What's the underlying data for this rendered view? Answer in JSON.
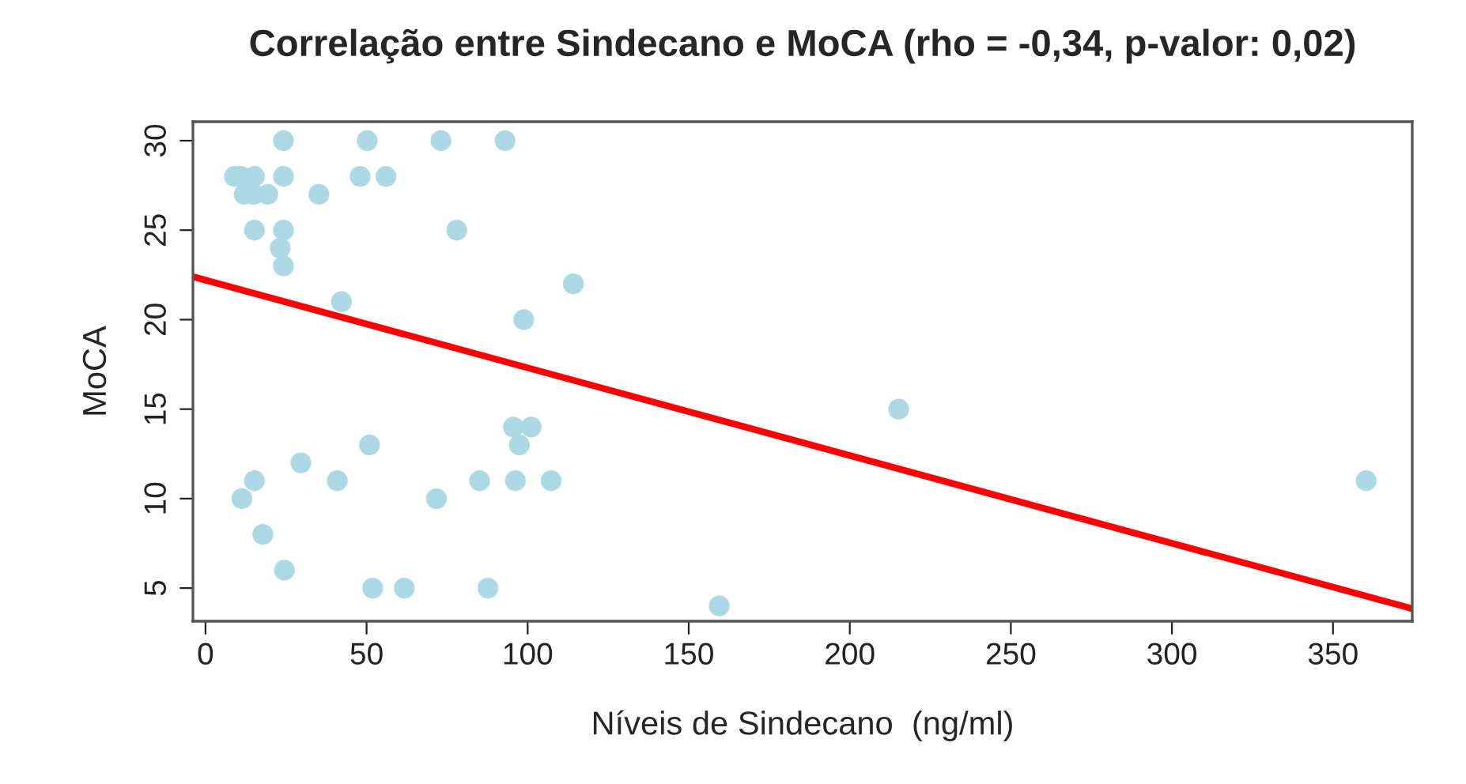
{
  "chart_data": {
    "type": "scatter",
    "title": "Correlação entre Sindecano e MoCA (rho = -0,34, p-valor: 0,02)",
    "xlabel": "Níveis de Sindecano  (ng/ml)",
    "ylabel": "MoCA",
    "series": [
      {
        "color": "#add8e6",
        "marker": "circle",
        "x": [
          24.2,
          50.2,
          73.1,
          93,
          9,
          11,
          15.2,
          24.2,
          48,
          56,
          12,
          15,
          19.3,
          35.2,
          15.2,
          24.2,
          78,
          23.2,
          24.2,
          114.2,
          42.2,
          98.8,
          215.2,
          95.6,
          101.1,
          50.9,
          97.4,
          29.6,
          15.2,
          40.9,
          85.1,
          96.2,
          107.3,
          360.3,
          11.3,
          71.7,
          17.8,
          24.5,
          51.9,
          61.7,
          87.7,
          159.5
        ],
        "values": [
          30,
          30,
          30,
          30,
          28,
          28,
          28,
          28,
          28,
          28,
          27,
          27,
          27,
          27,
          25,
          25,
          25,
          24,
          23,
          22,
          21,
          20,
          15,
          14,
          14,
          13,
          13,
          12,
          11,
          11,
          11,
          11,
          11,
          11,
          10,
          10,
          8,
          6,
          5,
          5,
          5,
          4
        ]
      },
      {
        "type": "line",
        "color": "#ff0000",
        "x": [
          -3.9,
          374.6
        ],
        "values": [
          22.4,
          3.85
        ]
      }
    ],
    "xlim": [
      -3.9,
      374.6
    ],
    "ylim": [
      3.15,
      31.06
    ],
    "xticks": [
      0,
      50,
      100,
      150,
      200,
      250,
      300,
      350
    ],
    "yticks": [
      5,
      10,
      15,
      20,
      25,
      30
    ],
    "grid": false,
    "legend": false
  }
}
